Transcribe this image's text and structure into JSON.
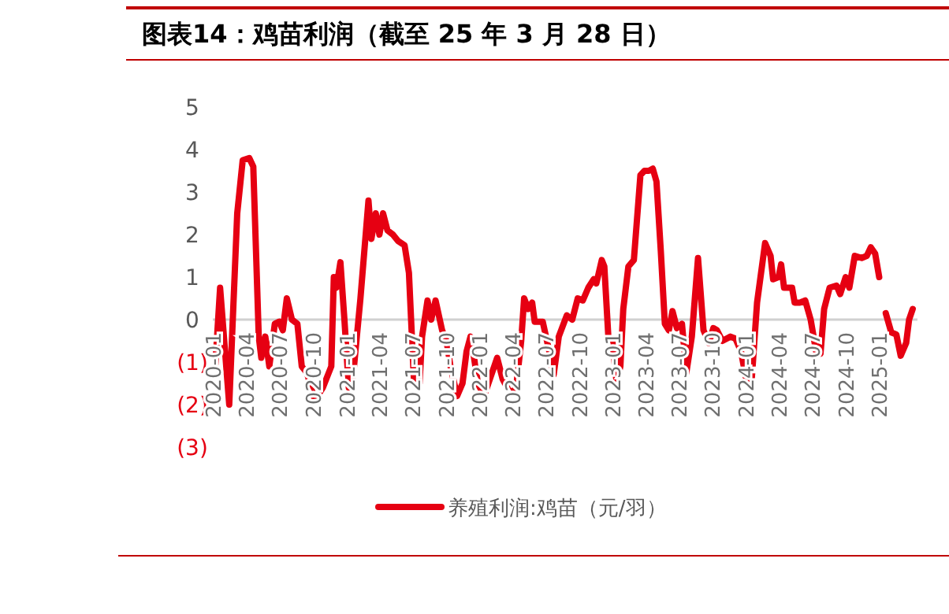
{
  "chart_data": {
    "type": "line",
    "title": "图表14：鸡苗利润（截至 25 年 3 月 28 日）",
    "x": [
      "2020-01-01",
      "2020-01-14",
      "2020-02-08",
      "2020-03-01",
      "2020-03-16",
      "2020-04-03",
      "2020-04-14",
      "2020-04-29",
      "2020-05-06",
      "2020-05-17",
      "2020-05-28",
      "2020-06-12",
      "2020-06-24",
      "2020-07-04",
      "2020-07-15",
      "2020-07-29",
      "2020-08-13",
      "2020-08-25",
      "2020-09-08",
      "2020-09-30",
      "2020-10-22",
      "2020-11-14",
      "2020-11-21",
      "2020-11-28",
      "2020-12-09",
      "2020-12-20",
      "2021-01-01",
      "2021-01-11",
      "2021-02-02",
      "2021-02-24",
      "2021-03-04",
      "2021-03-16",
      "2021-03-26",
      "2021-04-05",
      "2021-04-17",
      "2021-05-02",
      "2021-05-16",
      "2021-06-03",
      "2021-06-15",
      "2021-06-29",
      "2021-07-14",
      "2021-07-21",
      "2021-08-05",
      "2021-08-15",
      "2021-08-27",
      "2021-09-14",
      "2021-09-26",
      "2021-10-07",
      "2021-10-25",
      "2021-11-09",
      "2021-11-20",
      "2021-12-01",
      "2021-12-08",
      "2021-12-23",
      "2022-01-09",
      "2022-01-29",
      "2022-02-12",
      "2022-02-27",
      "2022-03-21",
      "2022-04-05",
      "2022-04-19",
      "2022-04-27",
      "2022-05-08",
      "2022-05-19",
      "2022-05-26",
      "2022-06-17",
      "2022-07-05",
      "2022-07-17",
      "2022-07-31",
      "2022-08-22",
      "2022-09-06",
      "2022-09-21",
      "2022-10-05",
      "2022-10-20",
      "2022-11-04",
      "2022-11-11",
      "2022-11-26",
      "2022-12-03",
      "2022-12-14",
      "2022-12-25",
      "2023-01-06",
      "2023-01-16",
      "2023-01-24",
      "2023-02-07",
      "2023-02-22",
      "2023-03-12",
      "2023-03-23",
      "2023-04-04",
      "2023-04-15",
      "2023-04-25",
      "2023-05-07",
      "2023-05-18",
      "2023-05-29",
      "2023-06-08",
      "2023-06-20",
      "2023-07-04",
      "2023-07-16",
      "2023-07-31",
      "2023-08-17",
      "2023-09-01",
      "2023-09-16",
      "2023-09-28",
      "2023-10-08",
      "2023-10-23",
      "2023-11-14",
      "2023-11-28",
      "2023-12-13",
      "2023-12-28",
      "2024-01-11",
      "2024-01-26",
      "2024-02-17",
      "2024-03-03",
      "2024-03-10",
      "2024-03-25",
      "2024-04-01",
      "2024-04-09",
      "2024-05-01",
      "2024-05-08",
      "2024-05-23",
      "2024-06-06",
      "2024-06-21",
      "2024-07-06",
      "2024-07-18",
      "2024-07-28",
      "2024-08-12",
      "2024-08-31",
      "2024-09-10",
      "2024-09-25",
      "2024-10-05",
      "2024-10-20",
      "2024-11-08",
      "2024-11-22",
      "2024-12-03",
      "2024-12-15",
      "2024-12-26"
    ],
    "series": [
      {
        "name": "养殖利润:鸡苗（元/羽）",
        "color": "#e60012",
        "values": [
          -1.05,
          0.75,
          -2.0,
          2.5,
          3.75,
          3.8,
          3.6,
          -0.4,
          -0.9,
          -0.4,
          -1.1,
          -0.1,
          -0.05,
          -0.25,
          0.5,
          0,
          -0.1,
          -1.1,
          -1.25,
          -1.9,
          -1.6,
          -1.1,
          1.0,
          0.75,
          1.35,
          0,
          -1.6,
          -1.5,
          0.5,
          2.8,
          1.9,
          2.5,
          2.0,
          2.5,
          2.1,
          2.0,
          1.85,
          1.75,
          1.1,
          -1.5,
          -1.5,
          -0.4,
          0.45,
          0,
          0.45,
          -0.25,
          -0.5,
          -1.1,
          -1.8,
          -1.5,
          -0.75,
          -0.4,
          -0.75,
          -1.6,
          -1.75,
          -1.25,
          -0.9,
          -1.4,
          -1.75,
          -1.6,
          -0.5,
          0.5,
          0.25,
          0.4,
          -0.05,
          -0.05,
          -0.75,
          -1.3,
          -0.4,
          0.1,
          0,
          0.5,
          0.45,
          0.75,
          0.95,
          0.85,
          1.4,
          1.25,
          -0.4,
          -0.5,
          -1.5,
          -1.1,
          0.25,
          1.25,
          1.4,
          3.4,
          3.5,
          3.5,
          3.55,
          3.25,
          1.6,
          -0.1,
          -0.25,
          0.2,
          -0.2,
          -0.1,
          -1.25,
          -0.4,
          1.45,
          -0.25,
          -0.55,
          -0.2,
          -0.25,
          -0.5,
          -0.4,
          -0.45,
          -0.75,
          -1.45,
          -1.45,
          0.4,
          1.8,
          1.5,
          0.95,
          1.0,
          1.3,
          0.75,
          0.75,
          0.4,
          0.4,
          0.45,
          0,
          -0.75,
          -0.8,
          0.25,
          0.75,
          0.8,
          0.6,
          1.0,
          0.75,
          1.5,
          1.45,
          1.5,
          1.7,
          1.55,
          1.0
        ]
      },
      {
        "color": "#e60012",
        "x": [
          "2025-01-13",
          "2025-01-28",
          "2025-02-11",
          "2025-02-23",
          "2025-03-10",
          "2025-03-18",
          "2025-03-28"
        ],
        "values": [
          0.15,
          -0.3,
          -0.35,
          -0.85,
          -0.55,
          0,
          0.25
        ]
      }
    ],
    "xlim": [
      "2019-12-25",
      "2025-04-10"
    ],
    "xticks": [
      "2020-01",
      "2020-04",
      "2020-07",
      "2020-10",
      "2021-01",
      "2021-04",
      "2021-07",
      "2021-10",
      "2022-01",
      "2022-04",
      "2022-07",
      "2022-10",
      "2023-01",
      "2023-04",
      "2023-07",
      "2023-10",
      "2024-01",
      "2024-04",
      "2024-07",
      "2024-10",
      "2025-01"
    ],
    "ylim": [
      -3,
      5
    ],
    "yticks": [
      {
        "value": -3,
        "label": "(3)"
      },
      {
        "value": -2,
        "label": "(2)"
      },
      {
        "value": -1,
        "label": "(1)"
      },
      0,
      1,
      2,
      3,
      4,
      5
    ],
    "legend": "bottom",
    "grid": false,
    "marker": "none",
    "line_style": "solid"
  }
}
